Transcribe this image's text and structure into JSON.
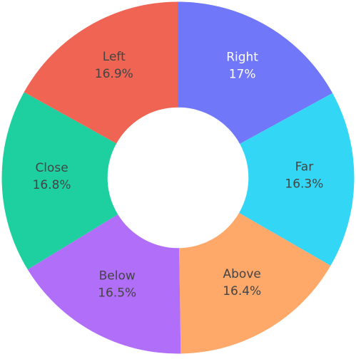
{
  "chart_data": {
    "type": "pie",
    "hole": 0.4,
    "direction": "clockwise",
    "start_angle": "top",
    "labels": [
      "Right",
      "Far",
      "Above",
      "Below",
      "Close",
      "Left"
    ],
    "values": [
      17,
      16.3,
      16.4,
      16.5,
      16.8,
      16.9
    ],
    "percent_labels": [
      "17%",
      "16.3%",
      "16.4%",
      "16.5%",
      "16.8%",
      "16.9%"
    ],
    "colors": [
      "#7077f8",
      "#33d6f4",
      "#fea86a",
      "#b16ef8",
      "#1ed0a0",
      "#ef6452"
    ],
    "label_colors": [
      "#ffffff",
      "#444444",
      "#444444",
      "#444444",
      "#444444",
      "#444444"
    ],
    "slice_border_color": "#ffffff"
  }
}
